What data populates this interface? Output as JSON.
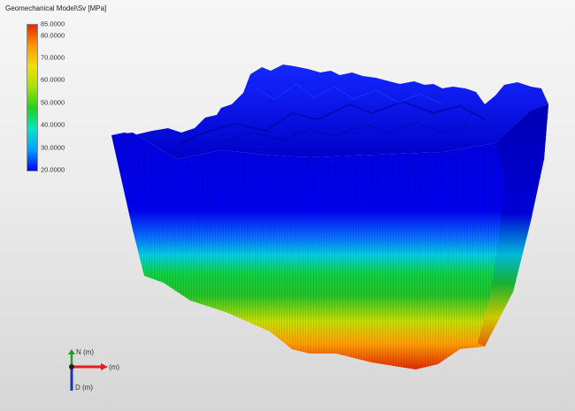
{
  "legend": {
    "title": "Geomechanical Model\\Sv [MPa]",
    "ticks": [
      "85.0000",
      "80.0000",
      "70.0000",
      "60.0000",
      "50.0000",
      "40.0000",
      "30.0000",
      "20.0000"
    ],
    "tick_values": [
      85,
      80,
      70,
      60,
      50,
      40,
      30,
      20
    ],
    "min": 20,
    "max": 85,
    "colors": [
      "#0000ff",
      "#00a0ff",
      "#00e6c8",
      "#1ed21e",
      "#a8e100",
      "#f0e000",
      "#ff9600",
      "#e62800"
    ]
  },
  "axes": {
    "north_label": "N (m)",
    "east_label": "(m)",
    "down_label": "D (m)",
    "east_color": "#e02020",
    "north_color": "#20a020",
    "down_color": "#2030c0"
  }
}
